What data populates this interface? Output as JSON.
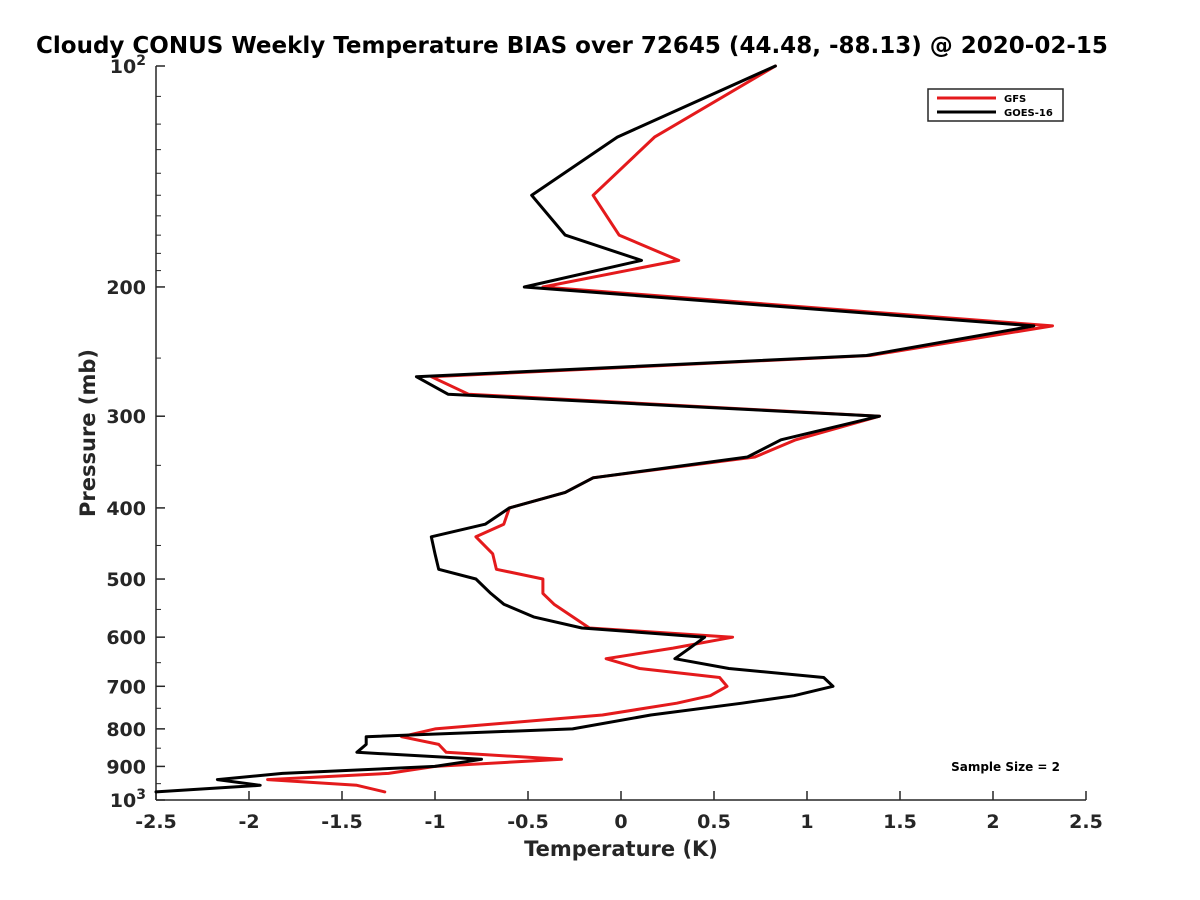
{
  "chart_data": {
    "type": "line",
    "title": "Cloudy CONUS Weekly Temperature BIAS over 72645 (44.48, -88.13) @ 2020-02-15",
    "xlabel": "Temperature (K)",
    "ylabel": "Pressure (mb)",
    "xlim": [
      -2.5,
      2.5
    ],
    "ylim": [
      1000,
      100
    ],
    "y_scale": "log",
    "x_ticks": [
      "-2.5",
      "-2",
      "-1.5",
      "-1",
      "-0.5",
      "0",
      "0.5",
      "1",
      "1.5",
      "2",
      "2.5"
    ],
    "y_ticks": [
      {
        "value": 200,
        "label": "200"
      },
      {
        "value": 300,
        "label": "300"
      },
      {
        "value": 400,
        "label": "400"
      },
      {
        "value": 500,
        "label": "500"
      },
      {
        "value": 600,
        "label": "600"
      },
      {
        "value": 700,
        "label": "700"
      },
      {
        "value": 800,
        "label": "800"
      },
      {
        "value": 900,
        "label": "900"
      }
    ],
    "y_tick_top": {
      "base": "10",
      "exp": "2"
    },
    "y_tick_bottom": {
      "base": "10",
      "exp": "3"
    },
    "grid": false,
    "legend_position": "top-right",
    "annotation": "Sample Size = 2",
    "series": [
      {
        "name": "GFS",
        "color": "#e41a1c",
        "points": [
          [
            0.83,
            100
          ],
          [
            0.18,
            125
          ],
          [
            -0.15,
            150
          ],
          [
            -0.01,
            170
          ],
          [
            0.31,
            184
          ],
          [
            -0.42,
            200
          ],
          [
            2.32,
            226
          ],
          [
            1.34,
            248
          ],
          [
            -1.02,
            265
          ],
          [
            -0.82,
            280
          ],
          [
            1.39,
            300
          ],
          [
            0.94,
            323
          ],
          [
            0.72,
            341
          ],
          [
            -0.15,
            364
          ],
          [
            -0.3,
            381
          ],
          [
            -0.6,
            400
          ],
          [
            -0.63,
            421
          ],
          [
            -0.78,
            438
          ],
          [
            -0.69,
            462
          ],
          [
            -0.67,
            485
          ],
          [
            -0.42,
            500
          ],
          [
            -0.42,
            523
          ],
          [
            -0.36,
            541
          ],
          [
            -0.17,
            583
          ],
          [
            0.6,
            600
          ],
          [
            0.28,
            621
          ],
          [
            -0.08,
            642
          ],
          [
            0.1,
            662
          ],
          [
            0.53,
            681
          ],
          [
            0.57,
            700
          ],
          [
            0.48,
            721
          ],
          [
            0.3,
            738
          ],
          [
            -0.1,
            766
          ],
          [
            -1.0,
            800
          ],
          [
            -1.18,
            820
          ],
          [
            -0.98,
            840
          ],
          [
            -0.94,
            861
          ],
          [
            -0.32,
            880
          ],
          [
            -1.0,
            900
          ],
          [
            -1.25,
            920
          ],
          [
            -1.9,
            938
          ],
          [
            -1.42,
            955
          ],
          [
            -1.27,
            975
          ]
        ]
      },
      {
        "name": "GOES-16",
        "color": "#000000",
        "points": [
          [
            0.83,
            100
          ],
          [
            -0.02,
            125
          ],
          [
            -0.48,
            150
          ],
          [
            -0.3,
            170
          ],
          [
            0.11,
            184
          ],
          [
            -0.52,
            200
          ],
          [
            2.22,
            226
          ],
          [
            1.32,
            248
          ],
          [
            -1.1,
            265
          ],
          [
            -0.93,
            280
          ],
          [
            1.39,
            300
          ],
          [
            0.86,
            323
          ],
          [
            0.68,
            341
          ],
          [
            -0.15,
            364
          ],
          [
            -0.3,
            381
          ],
          [
            -0.6,
            400
          ],
          [
            -0.73,
            421
          ],
          [
            -1.02,
            438
          ],
          [
            -1.0,
            462
          ],
          [
            -0.98,
            485
          ],
          [
            -0.78,
            500
          ],
          [
            -0.7,
            523
          ],
          [
            -0.63,
            541
          ],
          [
            -0.47,
            563
          ],
          [
            -0.21,
            583
          ],
          [
            0.45,
            600
          ],
          [
            0.37,
            621
          ],
          [
            0.29,
            642
          ],
          [
            0.58,
            662
          ],
          [
            1.09,
            681
          ],
          [
            1.14,
            700
          ],
          [
            0.93,
            721
          ],
          [
            0.65,
            738
          ],
          [
            0.16,
            766
          ],
          [
            -0.26,
            800
          ],
          [
            -1.37,
            820
          ],
          [
            -1.37,
            840
          ],
          [
            -1.42,
            861
          ],
          [
            -0.75,
            880
          ],
          [
            -1.0,
            900
          ],
          [
            -1.82,
            920
          ],
          [
            -2.17,
            938
          ],
          [
            -1.94,
            955
          ],
          [
            -2.5,
            975
          ]
        ]
      }
    ]
  }
}
